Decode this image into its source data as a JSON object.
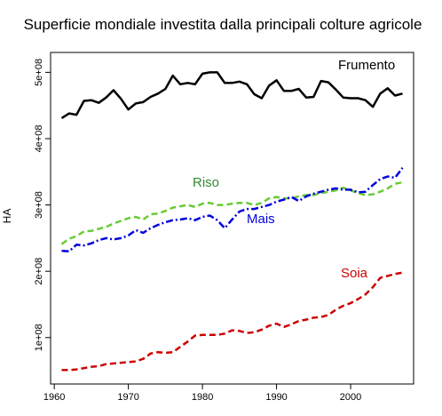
{
  "chart_data": {
    "type": "line",
    "title": "Superficie mondiale investita dalla principali colture agricole",
    "xlabel": "",
    "ylabel": "HA",
    "xlim": [
      1959.5,
      2008.5
    ],
    "ylim": [
      30000000,
      530000000
    ],
    "x_ticks": [
      1960,
      1970,
      1980,
      1990,
      2000
    ],
    "x_tick_labels": [
      "1960",
      "1970",
      "1980",
      "1990",
      "2000"
    ],
    "y_ticks": [
      100000000,
      200000000,
      300000000,
      400000000,
      500000000
    ],
    "y_tick_labels": [
      "1e+08",
      "2e+08",
      "3e+08",
      "4e+08",
      "5e+08"
    ],
    "grid": false,
    "x": [
      1961,
      1962,
      1963,
      1964,
      1965,
      1966,
      1967,
      1968,
      1969,
      1970,
      1971,
      1972,
      1973,
      1974,
      1975,
      1976,
      1977,
      1978,
      1979,
      1980,
      1981,
      1982,
      1983,
      1984,
      1985,
      1986,
      1987,
      1988,
      1989,
      1990,
      1991,
      1992,
      1993,
      1994,
      1995,
      1996,
      1997,
      1998,
      1999,
      2000,
      2001,
      2002,
      2003,
      2004,
      2005,
      2006,
      2007
    ],
    "series": [
      {
        "name": "Frumento",
        "color": "#000000",
        "dash": "solid",
        "values": [
          431,
          438,
          436,
          457,
          458,
          454,
          462,
          473,
          460,
          444,
          453,
          455,
          463,
          468,
          475,
          495,
          482,
          484,
          482,
          498,
          500,
          500,
          484,
          484,
          486,
          482,
          467,
          461,
          480,
          488,
          472,
          472,
          475,
          462,
          463,
          487,
          485,
          474,
          462,
          461,
          461,
          458,
          448,
          468,
          476,
          465,
          468
        ]
      },
      {
        "name": "Riso",
        "color": "#66cc33",
        "dash": "dashed",
        "values": [
          241,
          249,
          253,
          260,
          261,
          264,
          267,
          272,
          276,
          280,
          282,
          278,
          286,
          287,
          291,
          296,
          298,
          300,
          297,
          302,
          303,
          300,
          300,
          302,
          303,
          303,
          300,
          303,
          310,
          312,
          310,
          310,
          313,
          315,
          315,
          318,
          320,
          322,
          326,
          322,
          318,
          315,
          316,
          320,
          325,
          332,
          334
        ]
      },
      {
        "name": "Mais",
        "color": "#0000dd",
        "dash": "dashdot",
        "values": [
          231,
          230,
          240,
          239,
          242,
          247,
          250,
          248,
          250,
          254,
          262,
          258,
          265,
          270,
          274,
          277,
          278,
          280,
          277,
          282,
          284,
          277,
          265,
          278,
          290,
          294,
          294,
          297,
          300,
          305,
          308,
          312,
          306,
          313,
          317,
          320,
          323,
          325,
          323,
          323,
          319,
          320,
          330,
          339,
          343,
          341,
          356
        ]
      },
      {
        "name": "Soia",
        "color": "#cc0000",
        "dash": "dashed",
        "values": [
          51,
          51,
          52,
          54,
          56,
          57,
          60,
          61,
          62,
          63,
          64,
          68,
          76,
          78,
          77,
          78,
          86,
          94,
          103,
          104,
          104,
          104,
          106,
          111,
          110,
          107,
          108,
          112,
          118,
          121,
          116,
          120,
          125,
          127,
          130,
          131,
          134,
          142,
          148,
          152,
          158,
          165,
          176,
          190,
          193,
          196,
          198
        ]
      }
    ],
    "series_labels": [
      {
        "text": "Frumento",
        "color": "#000000"
      },
      {
        "text": "Riso",
        "color": "#338833"
      },
      {
        "text": "Mais",
        "color": "#0000dd"
      },
      {
        "text": "Soia",
        "color": "#cc0000"
      }
    ]
  }
}
